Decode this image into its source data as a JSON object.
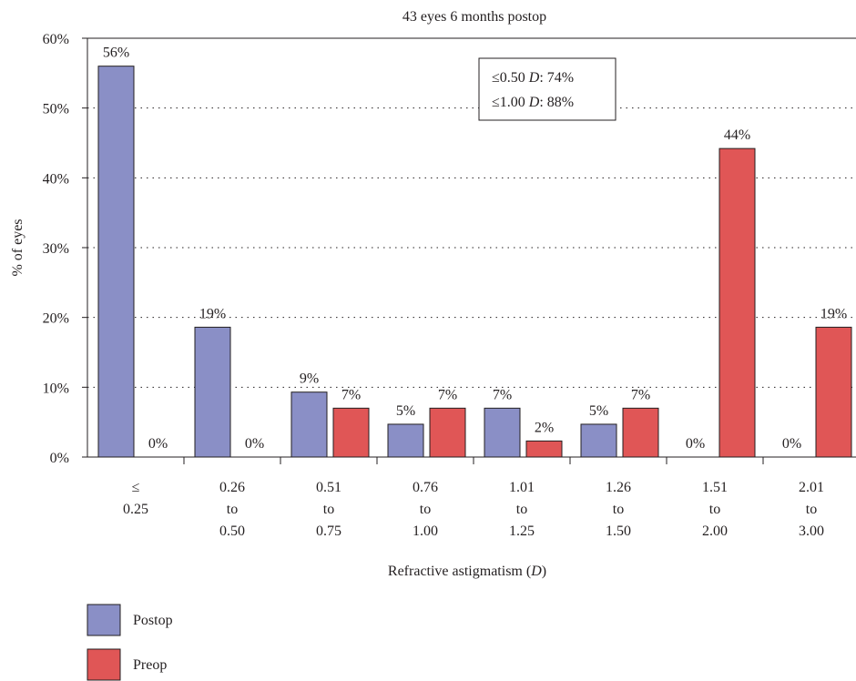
{
  "chart_data": {
    "type": "bar",
    "title": "43 eyes 6 months postop",
    "xlabel": "Refractive astigmatism",
    "xlabel_unit": "D",
    "ylabel": "% of eyes",
    "ylim": [
      0,
      60
    ],
    "yticks": [
      0,
      10,
      20,
      30,
      40,
      50,
      60
    ],
    "ytick_labels": [
      "0%",
      "10%",
      "20%",
      "30%",
      "40%",
      "50%",
      "60%"
    ],
    "grid": "horizontal dotted",
    "categories": [
      [
        "≤",
        "0.25"
      ],
      [
        "0.26",
        "to",
        "0.50"
      ],
      [
        "0.51",
        "to",
        "0.75"
      ],
      [
        "0.76",
        "to",
        "1.00"
      ],
      [
        "1.01",
        "to",
        "1.25"
      ],
      [
        "1.26",
        "to",
        "1.50"
      ],
      [
        "1.51",
        "to",
        "2.00"
      ],
      [
        "2.01",
        "to",
        "3.00"
      ]
    ],
    "series": [
      {
        "name": "Postop",
        "color": "#8a8fc6",
        "values": [
          56,
          18.6,
          9.3,
          4.7,
          7.0,
          4.7,
          0,
          0
        ],
        "labels": [
          "56%",
          "19%",
          "9%",
          "5%",
          "7%",
          "5%",
          "0%",
          "0%"
        ]
      },
      {
        "name": "Preop",
        "color": "#e05656",
        "values": [
          0,
          0,
          7.0,
          7.0,
          2.3,
          7.0,
          44.2,
          18.6
        ],
        "labels": [
          "0%",
          "0%",
          "7%",
          "7%",
          "2%",
          "7%",
          "44%",
          "19%"
        ]
      }
    ],
    "annotation": [
      {
        "prefix": "≤0.50 ",
        "unit": "D",
        "suffix": ": 74%"
      },
      {
        "prefix": "≤1.00 ",
        "unit": "D",
        "suffix": ": 88%"
      }
    ],
    "legend_position": "bottom-left"
  }
}
